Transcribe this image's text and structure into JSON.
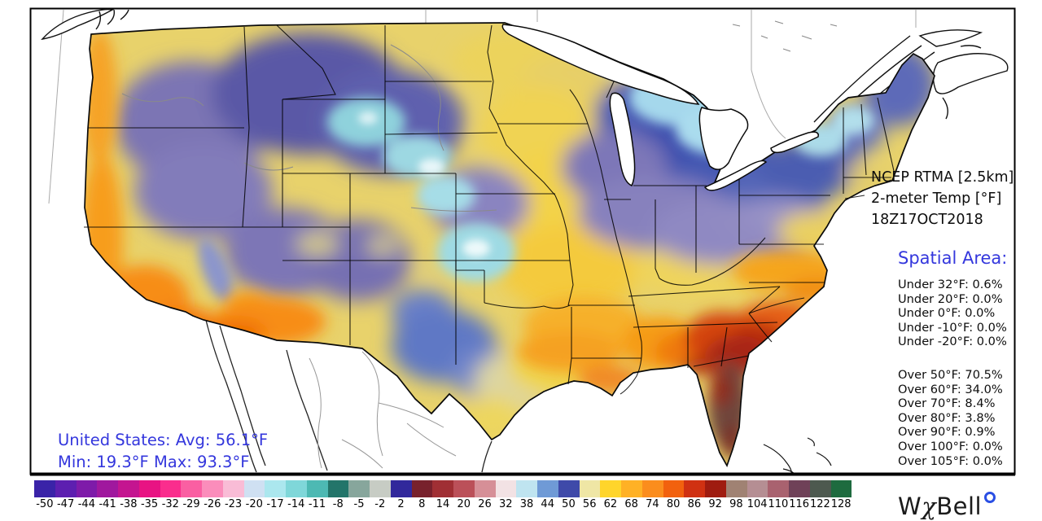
{
  "map": {
    "title_line1": "NCEP RTMA [2.5km]",
    "title_line2": "2-meter Temp [°F]",
    "title_line3": "18Z17OCT2018",
    "region_label": "Continental United States temperature analysis"
  },
  "spatial_area": {
    "heading": "Spatial Area:",
    "under_stats": [
      "Under 32°F: 0.6%",
      "Under 20°F: 0.0%",
      "Under 0°F: 0.0%",
      "Under -10°F: 0.0%",
      "Under -20°F: 0.0%"
    ],
    "over_stats": [
      "Over 50°F: 70.5%",
      "Over 60°F: 34.0%",
      "Over 70°F: 8.4%",
      "Over 80°F: 3.8%",
      "Over 90°F: 0.9%",
      "Over 100°F: 0.0%",
      "Over 105°F: 0.0%"
    ]
  },
  "summary": {
    "line1": "United States: Avg:  56.1°F",
    "line2": "Min:  19.3°F Max:  93.3°F"
  },
  "colorbar": {
    "tick_labels": [
      "-50",
      "-47",
      "-44",
      "-41",
      "-38",
      "-35",
      "-32",
      "-29",
      "-26",
      "-23",
      "-20",
      "-17",
      "-14",
      "-11",
      "-8",
      "-5",
      "-2",
      "2",
      "8",
      "14",
      "20",
      "26",
      "32",
      "38",
      "44",
      "50",
      "56",
      "62",
      "68",
      "74",
      "80",
      "86",
      "92",
      "98",
      "104",
      "110",
      "116",
      "122",
      "128"
    ],
    "segment_colors": [
      "#3a23a8",
      "#5d1fb0",
      "#7e1ba9",
      "#a0189e",
      "#c41590",
      "#e81383",
      "#fa2d8d",
      "#fa5fa2",
      "#fb8dbb",
      "#f9bcd6",
      "#cfe0f2",
      "#abe7ee",
      "#7fd7d9",
      "#4db9b3",
      "#23756a",
      "#87a69c",
      "#c7ccc4",
      "#31289b",
      "#78212c",
      "#a02f34",
      "#bb5059",
      "#d68f97",
      "#f2e2e4",
      "#bfe4f0",
      "#6f9ad6",
      "#3f4aa9",
      "#efe6a5",
      "#ffd52b",
      "#ffb125",
      "#fb8d1d",
      "#f2610e",
      "#d03112",
      "#9f1c10",
      "#a08273",
      "#b58e93",
      "#a9626f",
      "#6f4158",
      "#4d594f",
      "#1e6b3f"
    ]
  },
  "logo": {
    "text": "WχBell",
    "degree_symbol": ""
  },
  "colors": {
    "stat_blue": "#3437dd",
    "frame_black": "#000000"
  }
}
